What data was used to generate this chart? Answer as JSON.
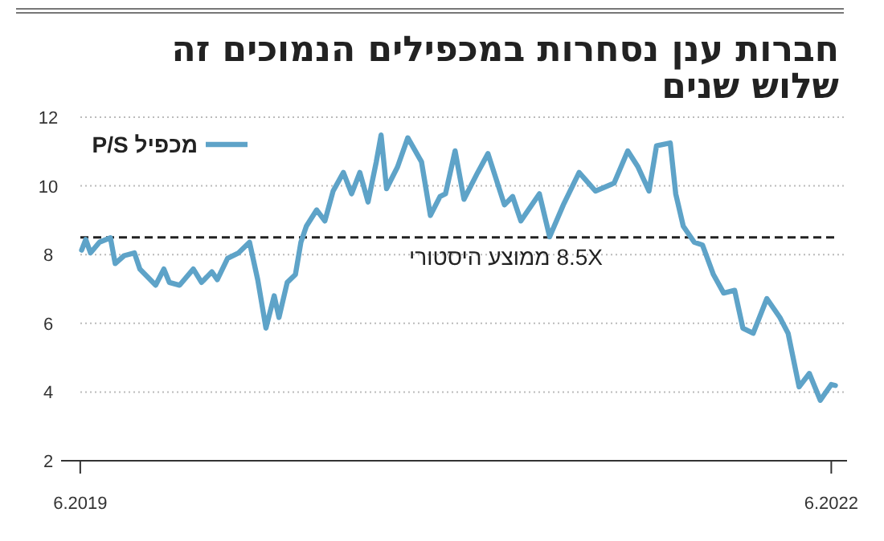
{
  "chart_data": {
    "type": "line",
    "title": "חברות ענן נסחרות במכפילים הנמוכים זה שלוש שנים",
    "xlim": [
      "2019-05-04",
      "2022-06-24"
    ],
    "xticks": [
      {
        "value": "2019-06-01",
        "label": "6.2019"
      },
      {
        "value": "2022-06-01",
        "label": "6.2022"
      }
    ],
    "ylim": [
      2,
      12
    ],
    "yticks": [
      2,
      4,
      6,
      8,
      10,
      12
    ],
    "grid": "y",
    "legend": "top left",
    "ref_lines": [
      {
        "axis": "y",
        "value": 8.5,
        "label": "8.5X ממוצע היסטורי",
        "color": "#222222",
        "line_style": "dashed"
      }
    ],
    "series": [
      {
        "name": "מכפיל P/S",
        "color": "#5ea3c8",
        "x": [
          "2019-06-03",
          "2019-06-09",
          "2019-06-16",
          "2019-06-29",
          "2019-07-15",
          "2019-07-22",
          "2019-08-04",
          "2019-08-19",
          "2019-08-27",
          "2019-09-19",
          "2019-10-01",
          "2019-10-09",
          "2019-10-24",
          "2019-11-13",
          "2019-11-25",
          "2019-12-10",
          "2019-12-18",
          "2020-01-02",
          "2020-01-18",
          "2020-02-03",
          "2020-02-15",
          "2020-02-27",
          "2020-03-10",
          "2020-03-17",
          "2020-03-29",
          "2020-04-10",
          "2020-04-18",
          "2020-04-26",
          "2020-05-11",
          "2020-05-23",
          "2020-06-04",
          "2020-06-19",
          "2020-07-01",
          "2020-07-13",
          "2020-07-25",
          "2020-08-06",
          "2020-08-13",
          "2020-08-21",
          "2020-09-06",
          "2020-09-21",
          "2020-10-11",
          "2020-10-24",
          "2020-11-07",
          "2020-11-15",
          "2020-11-29",
          "2020-12-12",
          "2021-01-01",
          "2021-01-16",
          "2021-02-09",
          "2021-02-21",
          "2021-03-05",
          "2021-04-01",
          "2021-04-16",
          "2021-05-06",
          "2021-05-29",
          "2021-06-22",
          "2021-07-19",
          "2021-08-08",
          "2021-08-23",
          "2021-09-08",
          "2021-09-19",
          "2021-10-09",
          "2021-10-17",
          "2021-10-28",
          "2021-11-13",
          "2021-11-25",
          "2021-12-11",
          "2021-12-26",
          "2022-01-11",
          "2022-01-23",
          "2022-02-07",
          "2022-02-27",
          "2022-03-18",
          "2022-03-30",
          "2022-04-15",
          "2022-04-30",
          "2022-05-16",
          "2022-06-01",
          "2022-06-07"
        ],
        "values": [
          8.13,
          8.44,
          8.05,
          8.36,
          8.49,
          7.74,
          7.97,
          8.05,
          7.58,
          7.11,
          7.58,
          7.19,
          7.11,
          7.58,
          7.19,
          7.5,
          7.27,
          7.89,
          8.05,
          8.36,
          7.27,
          5.86,
          6.8,
          6.17,
          7.19,
          7.42,
          8.36,
          8.83,
          9.3,
          8.98,
          9.85,
          10.39,
          9.77,
          10.39,
          9.53,
          10.7,
          11.48,
          9.92,
          10.55,
          11.4,
          10.7,
          9.14,
          9.69,
          9.77,
          11.02,
          9.61,
          10.39,
          10.94,
          9.45,
          9.69,
          8.98,
          9.77,
          8.52,
          9.45,
          10.39,
          9.85,
          10.08,
          11.02,
          10.55,
          9.85,
          11.17,
          11.25,
          9.77,
          8.83,
          8.36,
          8.28,
          7.42,
          6.88,
          6.96,
          5.86,
          5.71,
          6.72,
          6.17,
          5.71,
          4.15,
          4.54,
          3.76,
          4.22,
          4.19
        ]
      }
    ]
  }
}
